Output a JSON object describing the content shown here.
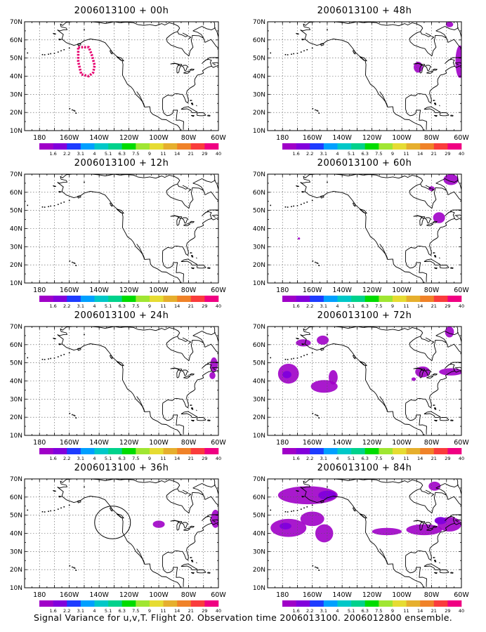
{
  "panels": [
    {
      "title": "2006013100 + 00h",
      "blobs": []
    },
    {
      "title": "2006013100 + 48h",
      "blobs": [
        {
          "lon": -68,
          "lat": 68.5,
          "rx": 2.5,
          "ry": 1.5,
          "c": 1
        },
        {
          "lon": -89,
          "lat": 45,
          "rx": 3,
          "ry": 3,
          "c": 1
        },
        {
          "lon": -61,
          "lat": 48,
          "rx": 3,
          "ry": 9,
          "c": 1
        }
      ]
    },
    {
      "title": "2006013100 + 12h",
      "blobs": []
    },
    {
      "title": "2006013100 + 60h",
      "blobs": [
        {
          "lon": -67,
          "lat": 67,
          "rx": 5,
          "ry": 3,
          "c": 1
        },
        {
          "lon": -80,
          "lat": 62,
          "rx": 2,
          "ry": 1.3,
          "c": 1
        },
        {
          "lon": -75,
          "lat": 46,
          "rx": 4,
          "ry": 3,
          "c": 1
        },
        {
          "lon": -169,
          "lat": 34.5,
          "rx": 0.8,
          "ry": 0.6,
          "c": 1
        }
      ]
    },
    {
      "title": "2006013100 + 24h",
      "blobs": [
        {
          "lon": -63,
          "lat": 49,
          "rx": 2.5,
          "ry": 4,
          "c": 1
        },
        {
          "lon": -64,
          "lat": 43,
          "rx": 2,
          "ry": 2,
          "c": 1
        }
      ]
    },
    {
      "title": "2006013100 + 72h",
      "blobs": [
        {
          "lon": -68,
          "lat": 67,
          "rx": 3,
          "ry": 3,
          "c": 1
        },
        {
          "lon": -166,
          "lat": 61,
          "rx": 5,
          "ry": 2,
          "c": 1
        },
        {
          "lon": -153,
          "lat": 62.5,
          "rx": 4,
          "ry": 2.5,
          "c": 1
        },
        {
          "lon": -176,
          "lat": 44,
          "rx": 7,
          "ry": 5.5,
          "c": 1
        },
        {
          "lon": -177,
          "lat": 43.5,
          "rx": 3,
          "ry": 2,
          "c": 2
        },
        {
          "lon": -152,
          "lat": 37,
          "rx": 9,
          "ry": 3.5,
          "c": 1
        },
        {
          "lon": -146,
          "lat": 42,
          "rx": 3,
          "ry": 4,
          "c": 1
        },
        {
          "lon": -86,
          "lat": 45,
          "rx": 5,
          "ry": 3,
          "c": 1
        },
        {
          "lon": -67,
          "lat": 45,
          "rx": 8,
          "ry": 2,
          "c": 1
        },
        {
          "lon": -92,
          "lat": 41,
          "rx": 1.5,
          "ry": 1,
          "c": 1
        }
      ]
    },
    {
      "title": "2006013100 + 36h",
      "blobs": [
        {
          "lon": -100,
          "lat": 45,
          "rx": 4,
          "ry": 2,
          "c": 1
        },
        {
          "lon": -62,
          "lat": 48,
          "rx": 3,
          "ry": 5,
          "c": 1
        }
      ]
    },
    {
      "title": "2006013100 + 84h",
      "blobs": [
        {
          "lon": -78,
          "lat": 66,
          "rx": 4,
          "ry": 2.5,
          "c": 1
        },
        {
          "lon": -163,
          "lat": 61,
          "rx": 20,
          "ry": 5,
          "c": 1
        },
        {
          "lon": -150,
          "lat": 61,
          "rx": 6,
          "ry": 2.5,
          "c": 2
        },
        {
          "lon": -176,
          "lat": 43,
          "rx": 12,
          "ry": 5,
          "c": 1
        },
        {
          "lon": -178,
          "lat": 44,
          "rx": 4,
          "ry": 1.8,
          "c": 2
        },
        {
          "lon": -152,
          "lat": 40,
          "rx": 6,
          "ry": 5,
          "c": 1
        },
        {
          "lon": -160,
          "lat": 48,
          "rx": 8,
          "ry": 4,
          "c": 1
        },
        {
          "lon": -110,
          "lat": 41,
          "rx": 10,
          "ry": 2,
          "c": 1
        },
        {
          "lon": -85,
          "lat": 42,
          "rx": 12,
          "ry": 3,
          "c": 1
        },
        {
          "lon": -68,
          "lat": 45,
          "rx": 8,
          "ry": 4,
          "c": 1
        },
        {
          "lon": -74,
          "lat": 47,
          "rx": 4,
          "ry": 2,
          "c": 2
        }
      ]
    }
  ],
  "ring00h": [
    [
      -154,
      56
    ],
    [
      -147,
      56
    ],
    [
      -145,
      52
    ],
    [
      -143,
      46
    ],
    [
      -144,
      42
    ],
    [
      -147,
      40
    ],
    [
      -152,
      41
    ],
    [
      -154,
      48
    ],
    [
      -154,
      56
    ]
  ],
  "circle36h": {
    "lon": -131,
    "lat": 46,
    "rx": 12,
    "ry": 9
  },
  "map": {
    "lon_min": -190,
    "lon_max": -60,
    "lat_min": 10,
    "lat_max": 70,
    "x_ticks": [
      {
        "lon": -180,
        "label": "180"
      },
      {
        "lon": -160,
        "label": "160W"
      },
      {
        "lon": -140,
        "label": "140W"
      },
      {
        "lon": -120,
        "label": "120W"
      },
      {
        "lon": -100,
        "label": "100W"
      },
      {
        "lon": -80,
        "label": "80W"
      },
      {
        "lon": -60,
        "label": "60W"
      }
    ],
    "y_ticks": [
      {
        "lat": 10,
        "label": "10N"
      },
      {
        "lat": 20,
        "label": "20N"
      },
      {
        "lat": 30,
        "label": "30N"
      },
      {
        "lat": 40,
        "label": "40N"
      },
      {
        "lat": 50,
        "label": "50N"
      },
      {
        "lat": 60,
        "label": "60N"
      },
      {
        "lat": 70,
        "label": "70N"
      }
    ]
  },
  "colorbar": {
    "colors": [
      "#a000c8",
      "#8200dc",
      "#1e3cff",
      "#00a0ff",
      "#00c8c8",
      "#00d28c",
      "#00dc00",
      "#a0e632",
      "#e6dc32",
      "#e6af2d",
      "#f08228",
      "#fa3c3c",
      "#f00082"
    ],
    "labels": [
      "1.6",
      "2.2",
      "3.1",
      "4",
      "5.1",
      "6.3",
      "7.5",
      "9",
      "11",
      "14",
      "21",
      "29",
      "40"
    ]
  },
  "shade_colors": [
    "#a000c8",
    "#8200dc",
    "#1e3cff"
  ],
  "ring_color": "#e6006e",
  "caption": "Signal Variance for u,v,T. Flight 20. Observation time 2006013100. 2006012800 ensemble."
}
